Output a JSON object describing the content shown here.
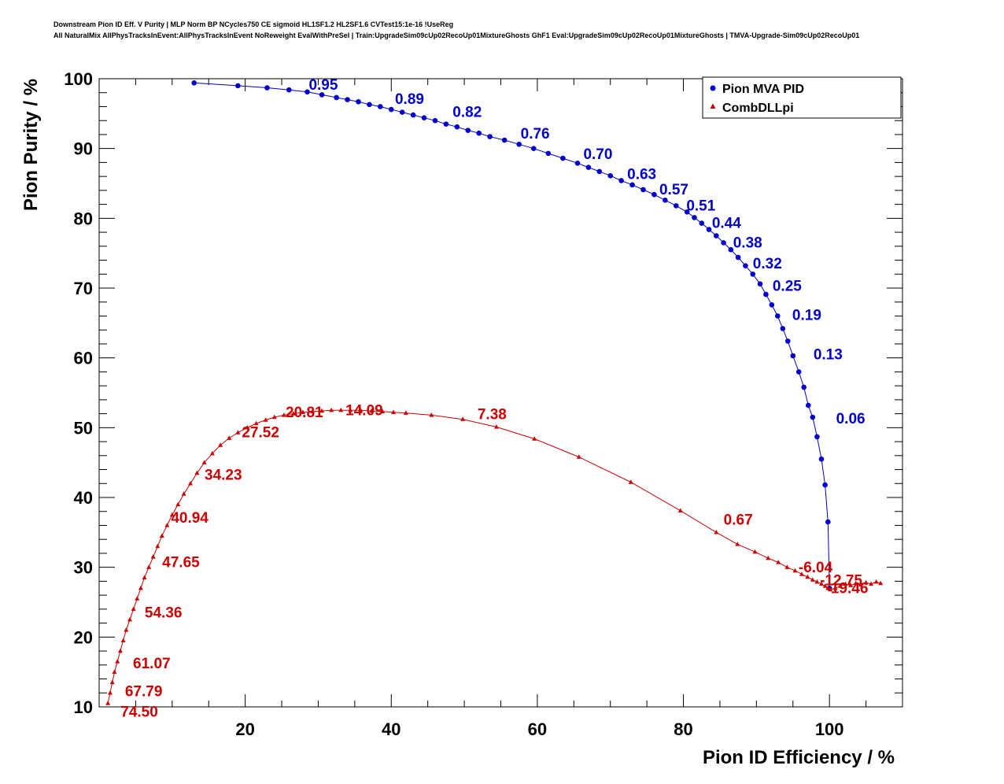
{
  "title_lines": [
    "Downstream Pion ID Eff. V Purity | MLP Norm BP NCycles750 CE sigmoid HL1SF1.2 HL2SF1.6 CVTest15:1e-16 !UseReg",
    "All NaturalMix AllPhysTracksInEvent:AllPhysTracksInEvent NoReweight EvalWithPreSel | Train:UpgradeSim09cUp02RecoUp01MixtureGhosts GhF1 Eval:UpgradeSim09cUp02RecoUp01MixtureGhosts | TMVA-Upgrade-Sim09cUp02RecoUp01"
  ],
  "chart_data": {
    "type": "line",
    "xlabel": "Pion ID Efficiency / %",
    "ylabel": "Pion Purity / %",
    "xlim": [
      0,
      110
    ],
    "ylim": [
      10,
      100
    ],
    "x_ticks": [
      20,
      40,
      60,
      80,
      100
    ],
    "y_ticks": [
      10,
      20,
      30,
      40,
      50,
      60,
      70,
      80,
      90,
      100
    ],
    "grid": false,
    "legend_position": "top-right",
    "series": [
      {
        "name": "Pion MVA PID",
        "color": "#0000cc",
        "marker": "circle",
        "points": [
          [
            13.0,
            99.4
          ],
          [
            19.0,
            99.0
          ],
          [
            23.0,
            98.7
          ],
          [
            26.0,
            98.4
          ],
          [
            28.5,
            98.1
          ],
          [
            30.5,
            97.7
          ],
          [
            32.5,
            97.3
          ],
          [
            34.0,
            97.0
          ],
          [
            35.5,
            96.7
          ],
          [
            37.0,
            96.3
          ],
          [
            38.5,
            96.0
          ],
          [
            40.0,
            95.6
          ],
          [
            41.5,
            95.2
          ],
          [
            43.0,
            94.8
          ],
          [
            44.5,
            94.4
          ],
          [
            46.0,
            94.0
          ],
          [
            47.5,
            93.5
          ],
          [
            49.0,
            93.1
          ],
          [
            50.5,
            92.6
          ],
          [
            52.0,
            92.2
          ],
          [
            53.5,
            91.7
          ],
          [
            55.5,
            91.2
          ],
          [
            57.5,
            90.6
          ],
          [
            59.5,
            90.0
          ],
          [
            61.5,
            89.3
          ],
          [
            63.5,
            88.6
          ],
          [
            65.5,
            87.9
          ],
          [
            67.0,
            87.3
          ],
          [
            68.5,
            86.7
          ],
          [
            70.0,
            86.1
          ],
          [
            71.5,
            85.4
          ],
          [
            73.0,
            84.8
          ],
          [
            74.5,
            84.1
          ],
          [
            76.0,
            83.4
          ],
          [
            77.5,
            82.6
          ],
          [
            79.0,
            81.8
          ],
          [
            80.5,
            80.9
          ],
          [
            81.5,
            80.1
          ],
          [
            82.5,
            79.3
          ],
          [
            83.5,
            78.4
          ],
          [
            84.5,
            77.5
          ],
          [
            85.5,
            76.5
          ],
          [
            86.5,
            75.5
          ],
          [
            87.5,
            74.4
          ],
          [
            88.5,
            73.2
          ],
          [
            89.5,
            72.0
          ],
          [
            90.5,
            70.6
          ],
          [
            91.3,
            69.1
          ],
          [
            92.1,
            67.6
          ],
          [
            92.9,
            66.0
          ],
          [
            93.6,
            64.2
          ],
          [
            94.3,
            62.4
          ],
          [
            95.0,
            60.3
          ],
          [
            95.8,
            58.0
          ],
          [
            96.5,
            55.8
          ],
          [
            97.1,
            53.2
          ],
          [
            97.7,
            51.5
          ],
          [
            98.3,
            48.7
          ],
          [
            98.9,
            45.5
          ],
          [
            99.4,
            41.8
          ],
          [
            99.8,
            36.5
          ],
          [
            100.0,
            27.0
          ]
        ],
        "labels": [
          {
            "text": "0.95",
            "x": 30.7,
            "y": 99.2
          },
          {
            "text": "0.89",
            "x": 42.5,
            "y": 97.2
          },
          {
            "text": "0.82",
            "x": 50.4,
            "y": 95.3
          },
          {
            "text": "0.76",
            "x": 59.7,
            "y": 92.2
          },
          {
            "text": "0.70",
            "x": 68.3,
            "y": 89.3
          },
          {
            "text": "0.63",
            "x": 74.3,
            "y": 86.4
          },
          {
            "text": "0.57",
            "x": 78.7,
            "y": 84.2
          },
          {
            "text": "0.51",
            "x": 82.4,
            "y": 81.9
          },
          {
            "text": "0.44",
            "x": 85.9,
            "y": 79.4
          },
          {
            "text": "0.38",
            "x": 88.8,
            "y": 76.6
          },
          {
            "text": "0.32",
            "x": 91.5,
            "y": 73.6
          },
          {
            "text": "0.25",
            "x": 94.2,
            "y": 70.4
          },
          {
            "text": "0.19",
            "x": 96.9,
            "y": 66.2
          },
          {
            "text": "0.13",
            "x": 99.8,
            "y": 60.6
          },
          {
            "text": "0.06",
            "x": 102.9,
            "y": 51.4
          }
        ]
      },
      {
        "name": "CombDLLpi",
        "color": "#cc0000",
        "marker": "triangle",
        "points": [
          [
            1.2,
            10.5
          ],
          [
            1.5,
            12.0
          ],
          [
            1.8,
            13.5
          ],
          [
            2.1,
            15.0
          ],
          [
            2.5,
            16.5
          ],
          [
            2.9,
            18.0
          ],
          [
            3.3,
            19.5
          ],
          [
            3.7,
            21.0
          ],
          [
            4.2,
            22.5
          ],
          [
            4.7,
            24.0
          ],
          [
            5.2,
            25.5
          ],
          [
            5.7,
            27.0
          ],
          [
            6.2,
            28.5
          ],
          [
            6.8,
            30.0
          ],
          [
            7.4,
            31.5
          ],
          [
            8.0,
            33.0
          ],
          [
            8.6,
            34.5
          ],
          [
            9.3,
            36.0
          ],
          [
            10.0,
            37.5
          ],
          [
            10.8,
            39.0
          ],
          [
            11.6,
            40.5
          ],
          [
            12.5,
            42.0
          ],
          [
            13.4,
            43.5
          ],
          [
            14.4,
            45.0
          ],
          [
            15.5,
            46.3
          ],
          [
            16.6,
            47.5
          ],
          [
            17.8,
            48.5
          ],
          [
            19.0,
            49.3
          ],
          [
            20.3,
            50.0
          ],
          [
            21.5,
            50.6
          ],
          [
            22.8,
            51.1
          ],
          [
            24.0,
            51.5
          ],
          [
            25.3,
            51.8
          ],
          [
            26.6,
            52.0
          ],
          [
            27.9,
            52.2
          ],
          [
            29.2,
            52.3
          ],
          [
            30.5,
            52.4
          ],
          [
            31.8,
            52.5
          ],
          [
            33.1,
            52.5
          ],
          [
            34.4,
            52.5
          ],
          [
            35.8,
            52.5
          ],
          [
            37.3,
            52.4
          ],
          [
            38.8,
            52.3
          ],
          [
            40.3,
            52.2
          ],
          [
            42.0,
            52.1
          ],
          [
            45.5,
            51.8
          ],
          [
            49.8,
            51.2
          ],
          [
            54.4,
            50.1
          ],
          [
            59.6,
            48.4
          ],
          [
            65.7,
            45.8
          ],
          [
            72.8,
            42.2
          ],
          [
            79.6,
            38.1
          ],
          [
            84.5,
            35.0
          ],
          [
            87.4,
            33.3
          ],
          [
            89.8,
            32.2
          ],
          [
            91.6,
            31.3
          ],
          [
            93.0,
            30.7
          ],
          [
            94.2,
            30.0
          ],
          [
            95.3,
            29.5
          ],
          [
            96.2,
            29.0
          ],
          [
            97.0,
            28.6
          ],
          [
            97.7,
            28.2
          ],
          [
            98.3,
            27.9
          ],
          [
            98.9,
            27.6
          ],
          [
            99.4,
            27.3
          ],
          [
            99.8,
            27.0
          ],
          [
            100.1,
            26.8
          ],
          [
            100.8,
            27.0
          ],
          [
            101.5,
            27.3
          ],
          [
            102.2,
            27.6
          ],
          [
            102.9,
            27.4
          ],
          [
            103.6,
            27.7
          ],
          [
            104.3,
            27.5
          ],
          [
            105.0,
            27.8
          ],
          [
            105.7,
            27.6
          ],
          [
            106.4,
            27.9
          ],
          [
            107.0,
            27.7
          ]
        ],
        "labels": [
          {
            "text": "20.81",
            "x": 28.1,
            "y": 52.3
          },
          {
            "text": "14.09",
            "x": 36.3,
            "y": 52.6
          },
          {
            "text": "7.38",
            "x": 53.8,
            "y": 52.0
          },
          {
            "text": "27.52",
            "x": 22.1,
            "y": 49.4
          },
          {
            "text": "34.23",
            "x": 17.0,
            "y": 43.3
          },
          {
            "text": "40.94",
            "x": 12.4,
            "y": 37.2
          },
          {
            "text": "0.67",
            "x": 87.5,
            "y": 36.9
          },
          {
            "text": "47.65",
            "x": 11.2,
            "y": 30.8
          },
          {
            "text": "-6.04",
            "x": 98.1,
            "y": 30.1
          },
          {
            "text": "-12.75",
            "x": 101.6,
            "y": 28.2
          },
          {
            "text": "-19.46",
            "x": 102.4,
            "y": 27.1
          },
          {
            "text": "54.36",
            "x": 8.8,
            "y": 23.6
          },
          {
            "text": "61.07",
            "x": 7.2,
            "y": 16.3
          },
          {
            "text": "67.79",
            "x": 6.1,
            "y": 12.3
          },
          {
            "text": "74.50",
            "x": 5.5,
            "y": 9.4
          }
        ]
      }
    ]
  }
}
